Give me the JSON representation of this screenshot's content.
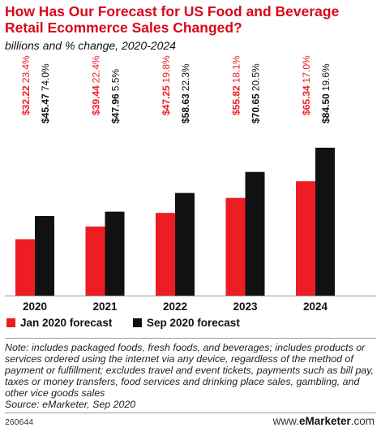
{
  "title": "How Has Our Forecast for US Food and Beverage Retail Ecommerce Sales Changed?",
  "subtitle": "billions and % change, 2020-2024",
  "colors": {
    "jan": "#ee1c25",
    "sep": "#111111",
    "title": "#d50a1a"
  },
  "chart_data": {
    "type": "bar",
    "categories": [
      "2020",
      "2021",
      "2022",
      "2023",
      "2024"
    ],
    "series": [
      {
        "name": "Jan 2020 forecast",
        "values": [
          32.22,
          39.44,
          47.25,
          55.82,
          65.34
        ],
        "value_labels": [
          "$32.22",
          "$39.44",
          "$47.25",
          "$55.82",
          "$65.34"
        ],
        "pct_labels": [
          "23.4%",
          "22.4%",
          "19.8%",
          "18.1%",
          "17.0%"
        ]
      },
      {
        "name": "Sep 2020 forecast",
        "values": [
          45.47,
          47.96,
          58.63,
          70.65,
          84.5
        ],
        "value_labels": [
          "$45.47",
          "$47.96",
          "$58.63",
          "$70.65",
          "$84.50"
        ],
        "pct_labels": [
          "74.0%",
          "5.5%",
          "22.3%",
          "20.5%",
          "19.6%"
        ]
      }
    ],
    "ylim": [
      0,
      100
    ],
    "grid": false,
    "legend_position": "bottom-left"
  },
  "legend": {
    "jan_label": "Jan 2020 forecast",
    "sep_label": "Sep 2020 forecast"
  },
  "note": "Note: includes packaged foods, fresh foods, and beverages; includes products or services ordered using the internet via any device, regardless of the method of payment or fulfillment; excludes travel and event tickets, payments such as bill pay, taxes or money transfers, food services and drinking place sales, gambling, and other vice goods sales",
  "source": "Source: eMarketer, Sep 2020",
  "footer_id": "260644",
  "brand_prefix": "www.",
  "brand_name": "eMarketer",
  "brand_suffix": ".com"
}
